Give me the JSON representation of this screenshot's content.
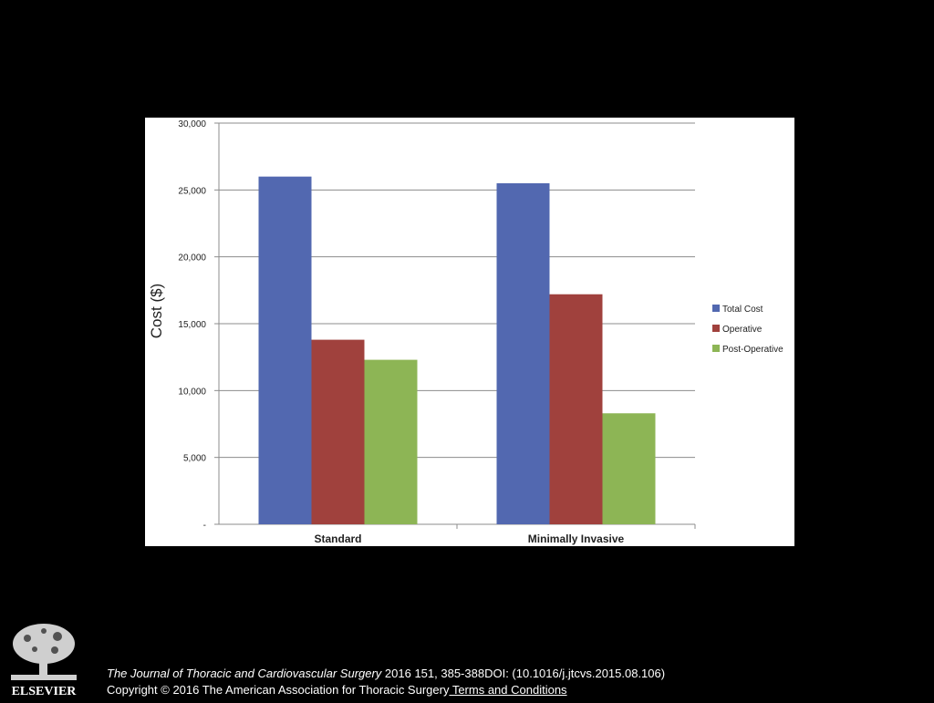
{
  "chart_data": {
    "type": "bar",
    "categories": [
      "Standard",
      "Minimally Invasive"
    ],
    "series": [
      {
        "name": "Total Cost",
        "color": "#5268b0",
        "values": [
          26000,
          25500
        ]
      },
      {
        "name": "Operative",
        "color": "#a0413d",
        "values": [
          13800,
          17200
        ]
      },
      {
        "name": "Post-Operative",
        "color": "#8db555",
        "values": [
          12300,
          8300
        ]
      }
    ],
    "ylabel": "Cost ($)",
    "ylim": [
      0,
      30000
    ],
    "yticks": [
      0,
      5000,
      10000,
      15000,
      20000,
      25000,
      30000
    ],
    "ytick_labels": [
      "-",
      "5,000",
      "10,000",
      "15,000",
      "20,000",
      "25,000",
      "30,000"
    ],
    "grid": true,
    "legend_position": "right"
  },
  "footer": {
    "logo_text": "ELSEVIER",
    "journal": "The Journal of Thoracic and Cardiovascular Surgery",
    "citation": " 2016 151, 385-388DOI: (10.1016/j.jtcvs.2015.08.106)",
    "copyright": "Copyright © 2016 The American Association for Thoracic Surgery",
    "terms_link": " Terms and Conditions"
  }
}
